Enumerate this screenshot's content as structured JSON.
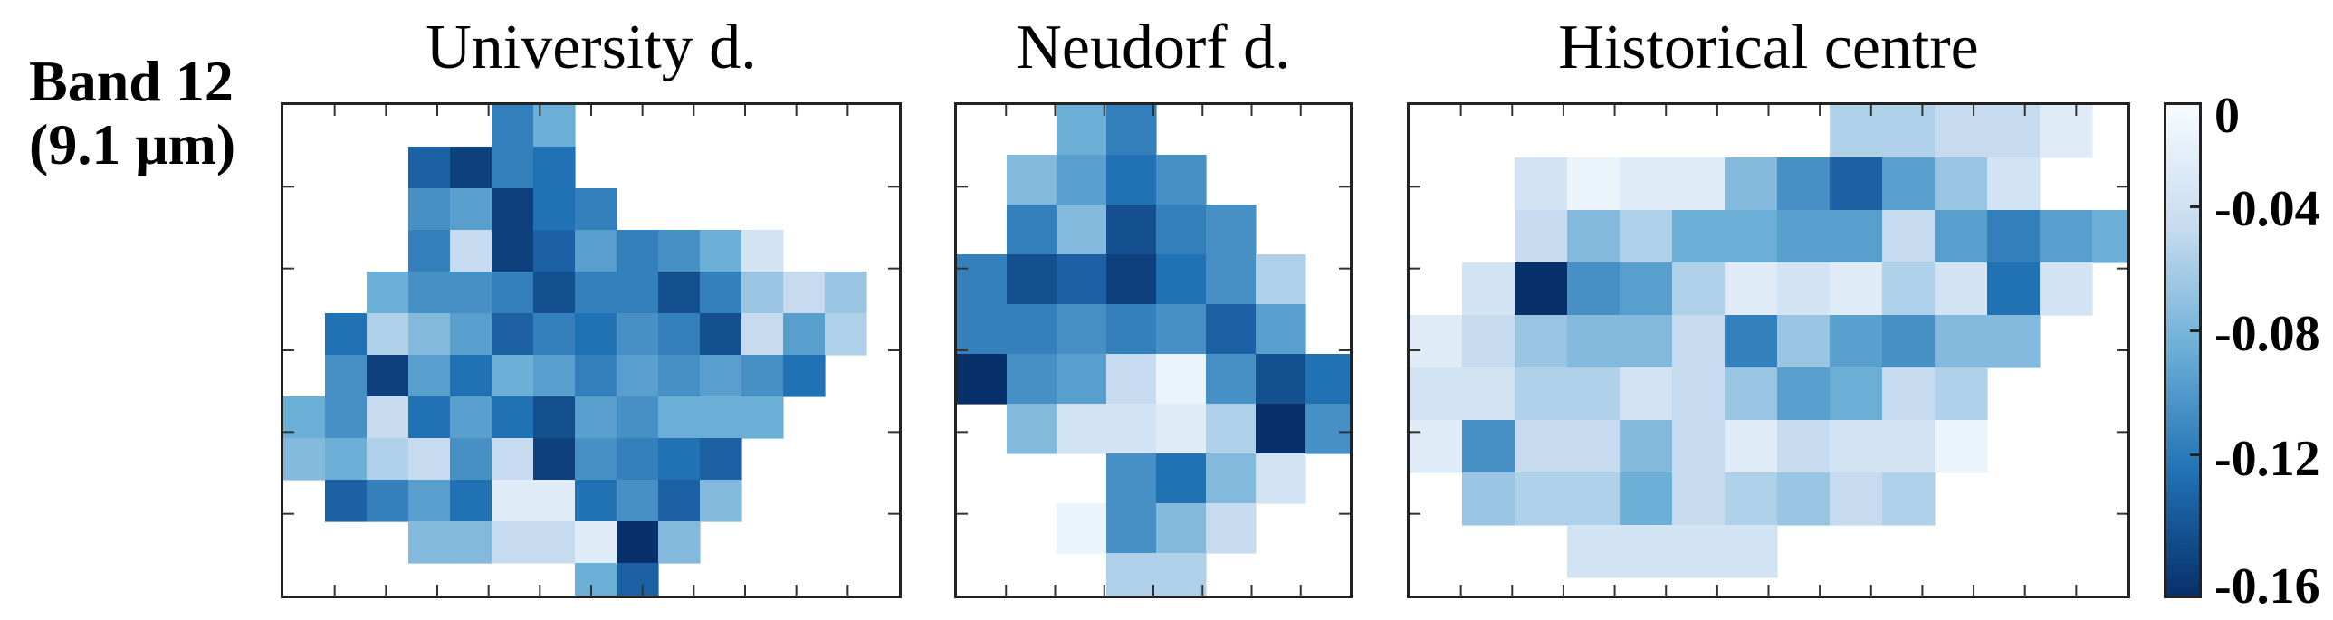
{
  "row_label": {
    "line1": "Band 12",
    "line2": "(9.1 μm)"
  },
  "colorbar": {
    "ticks": [
      "0",
      "-0.04",
      "-0.08",
      "-0.12",
      "-0.16"
    ],
    "range": [
      -0.16,
      0
    ],
    "colors": [
      "#f7fbff",
      "#c6dbef",
      "#6baed6",
      "#2171b5",
      "#08306b"
    ]
  },
  "chart_data": [
    {
      "type": "heatmap",
      "title": "University d.",
      "value_range": [
        -0.16,
        0
      ],
      "grid": [
        [
          null,
          null,
          null,
          null,
          null,
          -0.11,
          -0.08,
          null,
          null,
          null,
          null,
          null
        ],
        [
          null,
          null,
          null,
          -0.13,
          -0.15,
          -0.11,
          -0.12,
          null,
          null,
          null,
          null,
          null
        ],
        [
          null,
          null,
          null,
          -0.1,
          -0.09,
          -0.15,
          -0.12,
          -0.11,
          null,
          null,
          null,
          null
        ],
        [
          null,
          null,
          null,
          -0.11,
          -0.04,
          -0.15,
          -0.13,
          -0.09,
          -0.11,
          -0.1,
          -0.08,
          -0.03,
          null
        ],
        [
          null,
          null,
          -0.08,
          -0.1,
          -0.1,
          -0.11,
          -0.14,
          -0.11,
          -0.11,
          -0.14,
          -0.11,
          -0.06,
          -0.04,
          -0.06
        ],
        [
          null,
          -0.12,
          -0.05,
          -0.07,
          -0.09,
          -0.13,
          -0.11,
          -0.12,
          -0.1,
          -0.11,
          -0.14,
          -0.04,
          -0.09,
          -0.05
        ],
        [
          null,
          -0.1,
          -0.15,
          -0.09,
          -0.12,
          -0.08,
          -0.09,
          -0.11,
          -0.09,
          -0.1,
          -0.09,
          -0.1,
          -0.12,
          null
        ],
        [
          -0.08,
          -0.1,
          -0.04,
          -0.12,
          -0.09,
          -0.12,
          -0.14,
          -0.09,
          -0.1,
          -0.08,
          -0.08,
          -0.08,
          null,
          null
        ],
        [
          -0.07,
          -0.08,
          -0.05,
          -0.04,
          -0.1,
          -0.04,
          -0.15,
          -0.1,
          -0.11,
          -0.12,
          -0.13,
          null,
          null,
          null
        ],
        [
          null,
          -0.13,
          -0.11,
          -0.09,
          -0.12,
          -0.02,
          -0.02,
          -0.12,
          -0.1,
          -0.13,
          -0.07,
          null,
          null,
          null
        ],
        [
          null,
          null,
          null,
          -0.07,
          -0.07,
          -0.04,
          -0.04,
          -0.02,
          -0.16,
          -0.07,
          null,
          null,
          null,
          null
        ],
        [
          null,
          null,
          null,
          null,
          null,
          null,
          null,
          -0.08,
          -0.13,
          null,
          null,
          null,
          null,
          null
        ]
      ]
    },
    {
      "type": "heatmap",
      "title": "Neudorf d.",
      "value_range": [
        -0.16,
        0
      ],
      "grid": [
        [
          null,
          null,
          -0.08,
          -0.11,
          null,
          null,
          null,
          null
        ],
        [
          null,
          -0.07,
          -0.09,
          -0.12,
          -0.1,
          null,
          null,
          null
        ],
        [
          null,
          -0.11,
          -0.07,
          -0.14,
          -0.11,
          -0.1,
          null,
          null
        ],
        [
          -0.11,
          -0.14,
          -0.13,
          -0.15,
          -0.12,
          -0.1,
          -0.05,
          null
        ],
        [
          -0.11,
          -0.11,
          -0.1,
          -0.11,
          -0.1,
          -0.13,
          -0.09,
          null
        ],
        [
          -0.16,
          -0.1,
          -0.09,
          -0.04,
          -0.01,
          -0.1,
          -0.14,
          -0.12
        ],
        [
          null,
          -0.07,
          -0.03,
          -0.03,
          -0.02,
          -0.05,
          -0.16,
          -0.1
        ],
        [
          null,
          null,
          null,
          -0.1,
          -0.12,
          -0.07,
          -0.03,
          null
        ],
        [
          null,
          null,
          -0.01,
          -0.1,
          -0.07,
          -0.04,
          null,
          null
        ],
        [
          null,
          null,
          null,
          -0.05,
          -0.05,
          null,
          null,
          null
        ]
      ]
    },
    {
      "type": "heatmap",
      "title": "Historical centre",
      "value_range": [
        -0.16,
        0
      ],
      "grid": [
        [
          null,
          null,
          null,
          null,
          null,
          null,
          null,
          null,
          -0.05,
          -0.05,
          -0.04,
          -0.04,
          -0.02,
          null
        ],
        [
          null,
          null,
          -0.03,
          -0.01,
          -0.02,
          -0.02,
          -0.07,
          -0.1,
          -0.13,
          -0.09,
          -0.06,
          -0.03,
          null,
          null
        ],
        [
          null,
          null,
          -0.04,
          -0.07,
          -0.05,
          -0.08,
          -0.08,
          -0.09,
          -0.09,
          -0.04,
          -0.09,
          -0.11,
          -0.09,
          -0.08
        ],
        [
          null,
          -0.03,
          -0.16,
          -0.1,
          -0.09,
          -0.05,
          -0.02,
          -0.03,
          -0.02,
          -0.05,
          -0.03,
          -0.12,
          -0.03,
          null
        ],
        [
          -0.02,
          -0.04,
          -0.06,
          -0.07,
          -0.07,
          -0.04,
          -0.11,
          -0.06,
          -0.09,
          -0.1,
          -0.07,
          -0.07,
          null,
          null
        ],
        [
          -0.03,
          -0.03,
          -0.05,
          -0.05,
          -0.03,
          -0.04,
          -0.06,
          -0.09,
          -0.08,
          -0.04,
          -0.05,
          null,
          null,
          null
        ],
        [
          -0.02,
          -0.1,
          -0.04,
          -0.04,
          -0.07,
          -0.04,
          -0.02,
          -0.04,
          -0.03,
          -0.03,
          -0.01,
          null,
          null,
          null
        ],
        [
          null,
          -0.06,
          -0.05,
          -0.05,
          -0.08,
          -0.04,
          -0.05,
          -0.06,
          -0.04,
          -0.05,
          null,
          null,
          null,
          null
        ],
        [
          null,
          null,
          null,
          -0.03,
          -0.03,
          -0.03,
          -0.03,
          null,
          null,
          null,
          null,
          null,
          null,
          null
        ]
      ]
    }
  ]
}
